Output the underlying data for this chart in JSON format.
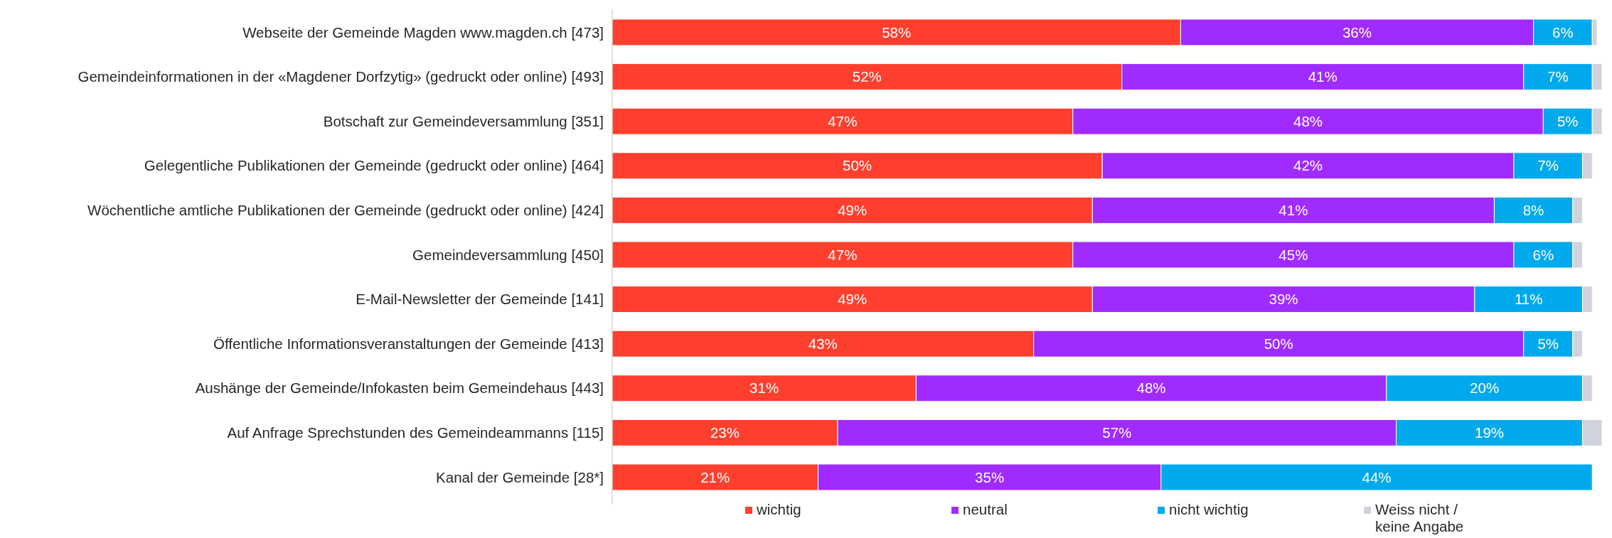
{
  "chart_data": {
    "type": "bar",
    "orientation": "horizontal",
    "stacked": true,
    "legend": "bottom",
    "categories": [
      "Webseite der Gemeinde Magden www.magden.ch [473]",
      "Gemeindeinformationen in der «Magdener Dorfzytig» (gedruckt oder online) [493]",
      "Botschaft zur Gemeindeversammlung [351]",
      "Gelegentliche Publikationen der Gemeinde (gedruckt oder online) [464]",
      "Wöchentliche amtliche Publikationen der Gemeinde (gedruckt oder online) [424]",
      "Gemeindeversammlung [450]",
      "E-Mail-Newsletter der Gemeinde [141]",
      "Öffentliche Informationsveranstaltungen der Gemeinde [413]",
      "Aushänge der Gemeinde/Infokasten beim Gemeindehaus [443]",
      "Auf Anfrage Sprechstunden des Gemeindeammanns [115]",
      "Kanal der Gemeinde [28*]"
    ],
    "series": [
      {
        "name": "wichtig",
        "color": "#ff3f2d",
        "values": [
          58,
          52,
          47,
          50,
          49,
          47,
          49,
          43,
          31,
          23,
          21
        ],
        "value_labels": [
          "58%",
          "52%",
          "47%",
          "50%",
          "49%",
          "47%",
          "49%",
          "43%",
          "31%",
          "23%",
          "21%"
        ]
      },
      {
        "name": "neutral",
        "color": "#a02bff",
        "values": [
          36,
          41,
          48,
          42,
          41,
          45,
          39,
          50,
          48,
          57,
          35
        ],
        "value_labels": [
          "36%",
          "41%",
          "48%",
          "42%",
          "41%",
          "45%",
          "39%",
          "50%",
          "48%",
          "57%",
          "35%"
        ]
      },
      {
        "name": "nicht wichtig",
        "color": "#00a9ec",
        "values": [
          6,
          7,
          5,
          7,
          8,
          6,
          11,
          5,
          20,
          19,
          44
        ],
        "value_labels": [
          "6%",
          "7%",
          "5%",
          "7%",
          "8%",
          "6%",
          "11%",
          "5%",
          "20%",
          "19%",
          "44%"
        ]
      },
      {
        "name": "Weiss nicht / keine Angabe",
        "color": "#d0d3db",
        "values": [
          0.5,
          1,
          1,
          1,
          1,
          1,
          1,
          1,
          1,
          2,
          0
        ]
      }
    ]
  }
}
